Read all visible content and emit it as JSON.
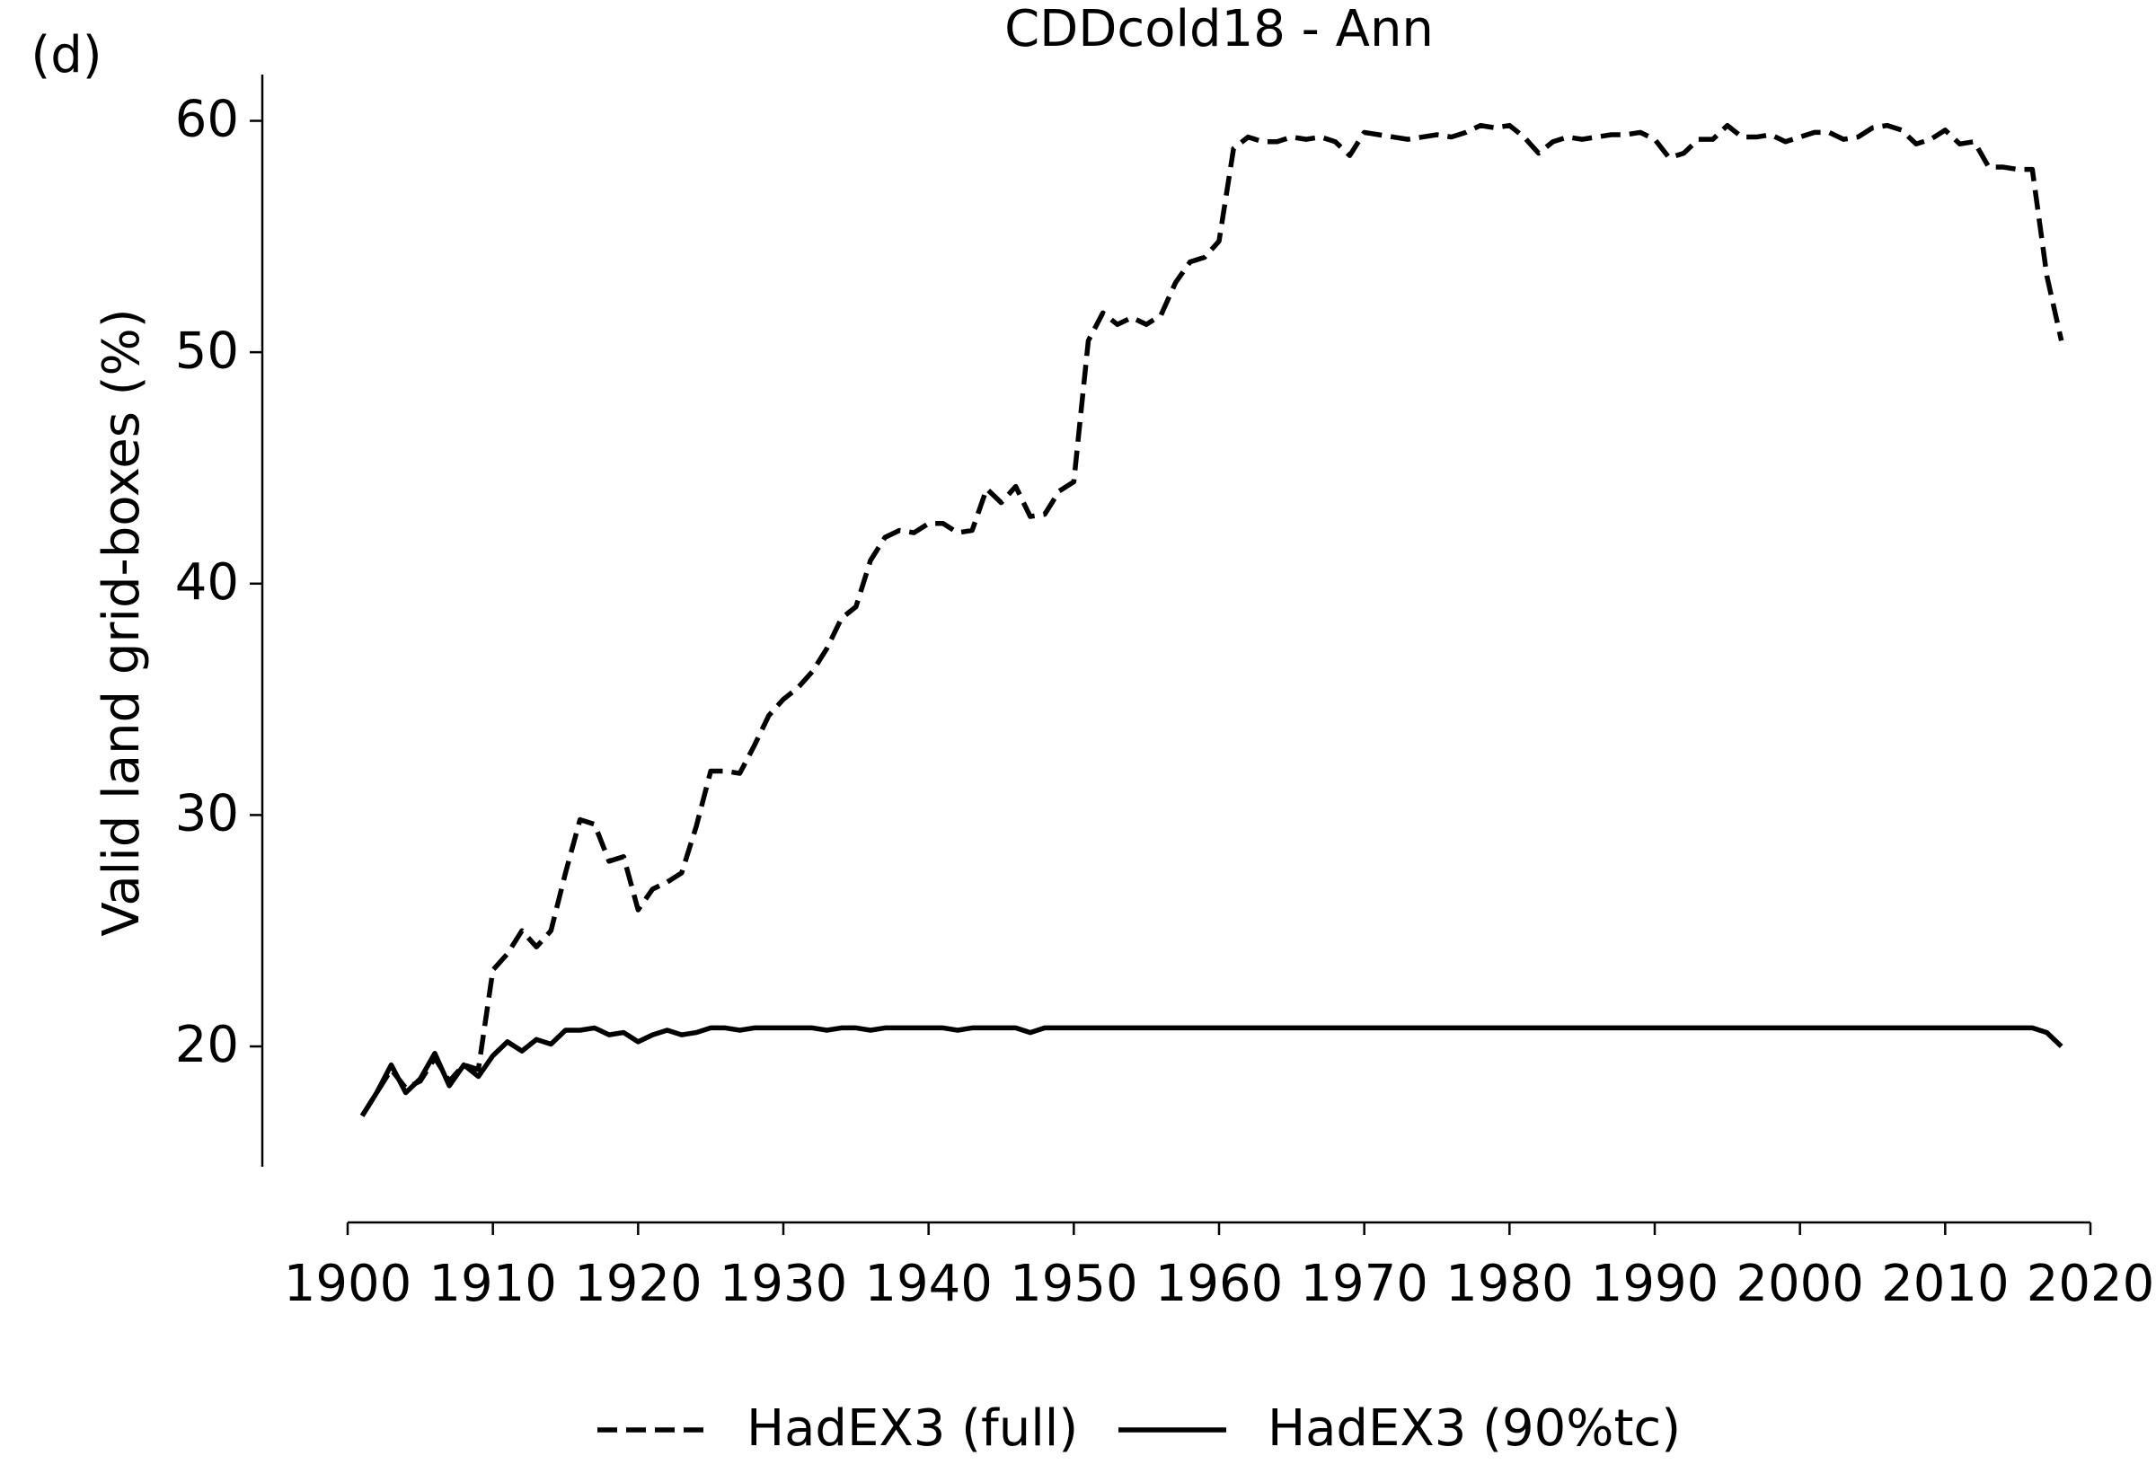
{
  "chart_data": {
    "type": "line",
    "panel_label": "(d)",
    "title": "CDDcold18 - Ann",
    "y_label": "Valid land grid-boxes (%)",
    "x": [
      1901,
      1902,
      1903,
      1904,
      1905,
      1906,
      1907,
      1908,
      1909,
      1910,
      1911,
      1912,
      1913,
      1914,
      1915,
      1916,
      1917,
      1918,
      1919,
      1920,
      1921,
      1922,
      1923,
      1924,
      1925,
      1926,
      1927,
      1928,
      1929,
      1930,
      1931,
      1932,
      1933,
      1934,
      1935,
      1936,
      1937,
      1938,
      1939,
      1940,
      1941,
      1942,
      1943,
      1944,
      1945,
      1946,
      1947,
      1948,
      1949,
      1950,
      1951,
      1952,
      1953,
      1954,
      1955,
      1956,
      1957,
      1958,
      1959,
      1960,
      1961,
      1962,
      1963,
      1964,
      1965,
      1966,
      1967,
      1968,
      1969,
      1970,
      1971,
      1972,
      1973,
      1974,
      1975,
      1976,
      1977,
      1978,
      1979,
      1980,
      1981,
      1982,
      1983,
      1984,
      1985,
      1986,
      1987,
      1988,
      1989,
      1990,
      1991,
      1992,
      1993,
      1994,
      1995,
      1996,
      1997,
      1998,
      1999,
      2000,
      2001,
      2002,
      2003,
      2004,
      2005,
      2006,
      2007,
      2008,
      2009,
      2010,
      2011,
      2012,
      2013,
      2014,
      2015,
      2016,
      2017,
      2018
    ],
    "series": [
      {
        "name": "HadEX3 (full)",
        "color": "#000000",
        "linestyle": "dashed",
        "values": [
          17.0,
          18.0,
          19.0,
          18.2,
          18.5,
          19.5,
          18.5,
          19.2,
          19.0,
          23.3,
          24.0,
          25.0,
          24.3,
          25.0,
          27.5,
          29.8,
          29.6,
          28.0,
          28.2,
          25.9,
          26.8,
          27.1,
          27.5,
          29.5,
          31.9,
          31.9,
          31.8,
          33.0,
          34.3,
          35.0,
          35.5,
          36.2,
          37.2,
          38.5,
          39.0,
          41.0,
          42.0,
          42.3,
          42.2,
          42.6,
          42.6,
          42.2,
          42.3,
          44.1,
          43.5,
          44.2,
          42.9,
          43.0,
          44.0,
          44.4,
          50.5,
          51.7,
          51.2,
          51.5,
          51.2,
          51.6,
          53.0,
          53.9,
          54.1,
          54.8,
          58.8,
          59.3,
          59.1,
          59.1,
          59.3,
          59.2,
          59.3,
          59.1,
          58.5,
          59.5,
          59.4,
          59.3,
          59.2,
          59.3,
          59.4,
          59.3,
          59.5,
          59.8,
          59.7,
          59.8,
          59.3,
          58.6,
          59.1,
          59.3,
          59.2,
          59.3,
          59.4,
          59.4,
          59.5,
          59.2,
          58.4,
          58.6,
          59.2,
          59.2,
          59.8,
          59.3,
          59.3,
          59.4,
          59.1,
          59.3,
          59.5,
          59.5,
          59.2,
          59.3,
          59.7,
          59.8,
          59.6,
          59.0,
          59.2,
          59.6,
          59.0,
          59.1,
          58.0,
          58.0,
          57.9,
          57.9,
          53.3,
          50.5
        ]
      },
      {
        "name": "HadEX3 (90%tc)",
        "color": "#000000",
        "linestyle": "solid",
        "values": [
          17.0,
          18.0,
          19.2,
          18.0,
          18.6,
          19.7,
          18.3,
          19.2,
          18.7,
          19.6,
          20.2,
          19.8,
          20.3,
          20.1,
          20.7,
          20.7,
          20.8,
          20.5,
          20.6,
          20.2,
          20.5,
          20.7,
          20.5,
          20.6,
          20.8,
          20.8,
          20.7,
          20.8,
          20.8,
          20.8,
          20.8,
          20.8,
          20.7,
          20.8,
          20.8,
          20.7,
          20.8,
          20.8,
          20.8,
          20.8,
          20.8,
          20.7,
          20.8,
          20.8,
          20.8,
          20.8,
          20.6,
          20.8,
          20.8,
          20.8,
          20.8,
          20.8,
          20.8,
          20.8,
          20.8,
          20.8,
          20.8,
          20.8,
          20.8,
          20.8,
          20.8,
          20.8,
          20.8,
          20.8,
          20.8,
          20.8,
          20.8,
          20.8,
          20.8,
          20.8,
          20.8,
          20.8,
          20.8,
          20.8,
          20.8,
          20.8,
          20.8,
          20.8,
          20.8,
          20.8,
          20.8,
          20.8,
          20.8,
          20.8,
          20.8,
          20.8,
          20.8,
          20.8,
          20.8,
          20.8,
          20.8,
          20.8,
          20.8,
          20.8,
          20.8,
          20.8,
          20.8,
          20.8,
          20.8,
          20.8,
          20.8,
          20.8,
          20.8,
          20.8,
          20.8,
          20.8,
          20.8,
          20.8,
          20.8,
          20.8,
          20.8,
          20.8,
          20.8,
          20.8,
          20.8,
          20.8,
          20.6,
          20.0
        ]
      }
    ],
    "xlim": [
      1900,
      2020
    ],
    "xticks": [
      1900,
      1910,
      1920,
      1930,
      1940,
      1950,
      1960,
      1970,
      1980,
      1990,
      2000,
      2010,
      2020
    ],
    "ylim": [
      14.8,
      62
    ],
    "yticks": [
      20,
      30,
      40,
      50,
      60
    ],
    "grid": false,
    "legend": "below"
  }
}
